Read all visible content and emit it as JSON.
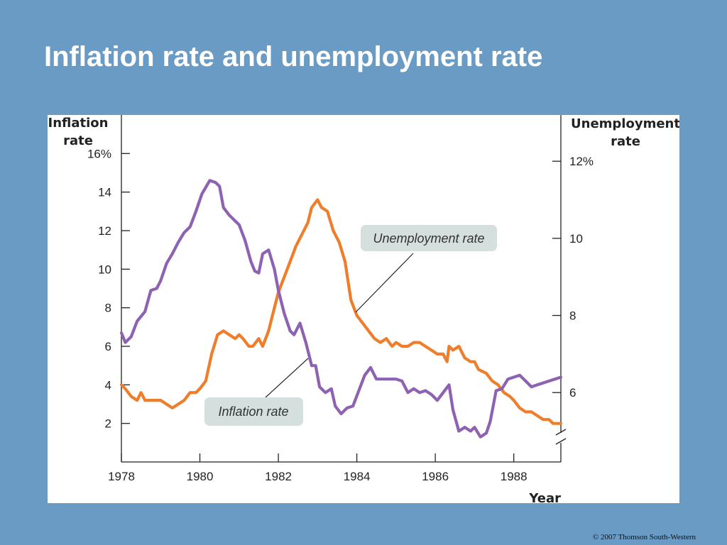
{
  "slide": {
    "title": "Inflation rate and unemployment rate",
    "copyright": "© 2007 Thomson South-Western"
  },
  "colors": {
    "background": "#6a9bc4",
    "inflation": "#8d62b2",
    "unemployment": "#ee7e2c",
    "callout_fill": "#d5e0de"
  },
  "chart_data": {
    "type": "line",
    "title": "Inflation rate and unemployment rate",
    "xlabel": "Year",
    "left_axis": {
      "label_line1": "Inflation",
      "label_line2": "rate",
      "range": [
        0,
        18
      ],
      "ticks": [
        {
          "value": 2,
          "label": "2"
        },
        {
          "value": 4,
          "label": "4"
        },
        {
          "value": 6,
          "label": "6"
        },
        {
          "value": 8,
          "label": "8"
        },
        {
          "value": 10,
          "label": "10"
        },
        {
          "value": 12,
          "label": "12"
        },
        {
          "value": 14,
          "label": "14"
        },
        {
          "value": 16,
          "label": "16%"
        }
      ]
    },
    "right_axis": {
      "label_line1": "Unemployment",
      "label_line2": "rate",
      "range": [
        4.2,
        13.2
      ],
      "axis_break": true,
      "ticks": [
        {
          "value": 6,
          "label": "6"
        },
        {
          "value": 8,
          "label": "8"
        },
        {
          "value": 10,
          "label": "10"
        },
        {
          "value": 12,
          "label": "12%"
        }
      ]
    },
    "x_range": [
      1978,
      1989.2
    ],
    "x_ticks": [
      {
        "value": 1978,
        "label": "1978"
      },
      {
        "value": 1980,
        "label": "1980"
      },
      {
        "value": 1982,
        "label": "1982"
      },
      {
        "value": 1984,
        "label": "1984"
      },
      {
        "value": 1986,
        "label": "1986"
      },
      {
        "value": 1988,
        "label": "1988"
      }
    ],
    "series": [
      {
        "name": "Inflation rate",
        "axis": "left",
        "points": [
          [
            1978.0,
            6.7
          ],
          [
            1978.1,
            6.2
          ],
          [
            1978.25,
            6.5
          ],
          [
            1978.4,
            7.3
          ],
          [
            1978.6,
            7.8
          ],
          [
            1978.75,
            8.9
          ],
          [
            1978.9,
            9.0
          ],
          [
            1979.0,
            9.4
          ],
          [
            1979.15,
            10.3
          ],
          [
            1979.3,
            10.8
          ],
          [
            1979.45,
            11.4
          ],
          [
            1979.6,
            11.9
          ],
          [
            1979.75,
            12.2
          ],
          [
            1979.9,
            13.0
          ],
          [
            1980.05,
            13.9
          ],
          [
            1980.25,
            14.6
          ],
          [
            1980.4,
            14.5
          ],
          [
            1980.5,
            14.3
          ],
          [
            1980.6,
            13.2
          ],
          [
            1980.75,
            12.8
          ],
          [
            1980.9,
            12.5
          ],
          [
            1981.0,
            12.3
          ],
          [
            1981.15,
            11.5
          ],
          [
            1981.3,
            10.4
          ],
          [
            1981.4,
            9.9
          ],
          [
            1981.5,
            9.8
          ],
          [
            1981.6,
            10.8
          ],
          [
            1981.75,
            11.0
          ],
          [
            1981.9,
            10.0
          ],
          [
            1982.0,
            8.9
          ],
          [
            1982.15,
            7.7
          ],
          [
            1982.3,
            6.8
          ],
          [
            1982.4,
            6.6
          ],
          [
            1982.55,
            7.2
          ],
          [
            1982.7,
            6.2
          ],
          [
            1982.85,
            5.0
          ],
          [
            1982.95,
            5.0
          ],
          [
            1983.05,
            3.9
          ],
          [
            1983.2,
            3.6
          ],
          [
            1983.35,
            3.8
          ],
          [
            1983.45,
            2.9
          ],
          [
            1983.6,
            2.5
          ],
          [
            1983.75,
            2.8
          ],
          [
            1983.9,
            2.9
          ],
          [
            1984.05,
            3.7
          ],
          [
            1984.2,
            4.5
          ],
          [
            1984.35,
            4.9
          ],
          [
            1984.5,
            4.3
          ],
          [
            1984.7,
            4.3
          ],
          [
            1984.85,
            4.3
          ],
          [
            1985.0,
            4.3
          ],
          [
            1985.15,
            4.2
          ],
          [
            1985.3,
            3.6
          ],
          [
            1985.45,
            3.8
          ],
          [
            1985.6,
            3.6
          ],
          [
            1985.75,
            3.7
          ],
          [
            1985.9,
            3.5
          ],
          [
            1986.05,
            3.2
          ],
          [
            1986.2,
            3.6
          ],
          [
            1986.35,
            4.0
          ],
          [
            1986.45,
            2.7
          ],
          [
            1986.6,
            1.6
          ],
          [
            1986.75,
            1.8
          ],
          [
            1986.9,
            1.6
          ],
          [
            1987.0,
            1.8
          ],
          [
            1987.15,
            1.3
          ],
          [
            1987.3,
            1.5
          ],
          [
            1987.4,
            2.1
          ],
          [
            1987.55,
            3.7
          ],
          [
            1987.7,
            3.8
          ],
          [
            1987.85,
            4.3
          ],
          [
            1988.0,
            4.4
          ],
          [
            1988.15,
            4.5
          ],
          [
            1988.3,
            4.2
          ],
          [
            1988.45,
            3.9
          ],
          [
            1988.6,
            4.0
          ],
          [
            1988.75,
            4.1
          ],
          [
            1988.9,
            4.2
          ],
          [
            1989.05,
            4.3
          ],
          [
            1989.2,
            4.4
          ]
        ]
      },
      {
        "name": "Unemployment rate",
        "axis": "right",
        "points": [
          [
            1978.0,
            6.2
          ],
          [
            1978.1,
            6.1
          ],
          [
            1978.25,
            5.9
          ],
          [
            1978.4,
            5.8
          ],
          [
            1978.5,
            6.0
          ],
          [
            1978.6,
            5.8
          ],
          [
            1978.75,
            5.8
          ],
          [
            1978.9,
            5.8
          ],
          [
            1979.0,
            5.8
          ],
          [
            1979.15,
            5.7
          ],
          [
            1979.3,
            5.6
          ],
          [
            1979.45,
            5.7
          ],
          [
            1979.6,
            5.8
          ],
          [
            1979.75,
            6.0
          ],
          [
            1979.9,
            6.0
          ],
          [
            1980.0,
            6.1
          ],
          [
            1980.15,
            6.3
          ],
          [
            1980.3,
            7.0
          ],
          [
            1980.45,
            7.5
          ],
          [
            1980.6,
            7.6
          ],
          [
            1980.75,
            7.5
          ],
          [
            1980.9,
            7.4
          ],
          [
            1981.0,
            7.5
          ],
          [
            1981.1,
            7.4
          ],
          [
            1981.25,
            7.2
          ],
          [
            1981.35,
            7.2
          ],
          [
            1981.5,
            7.4
          ],
          [
            1981.6,
            7.2
          ],
          [
            1981.75,
            7.6
          ],
          [
            1981.9,
            8.2
          ],
          [
            1982.0,
            8.6
          ],
          [
            1982.15,
            9.0
          ],
          [
            1982.3,
            9.4
          ],
          [
            1982.45,
            9.8
          ],
          [
            1982.6,
            10.1
          ],
          [
            1982.75,
            10.4
          ],
          [
            1982.85,
            10.8
          ],
          [
            1983.0,
            11.0
          ],
          [
            1983.1,
            10.8
          ],
          [
            1983.25,
            10.7
          ],
          [
            1983.4,
            10.2
          ],
          [
            1983.55,
            9.9
          ],
          [
            1983.7,
            9.4
          ],
          [
            1983.85,
            8.4
          ],
          [
            1984.0,
            8.0
          ],
          [
            1984.15,
            7.8
          ],
          [
            1984.3,
            7.6
          ],
          [
            1984.45,
            7.4
          ],
          [
            1984.6,
            7.3
          ],
          [
            1984.75,
            7.4
          ],
          [
            1984.9,
            7.2
          ],
          [
            1985.0,
            7.3
          ],
          [
            1985.15,
            7.2
          ],
          [
            1985.3,
            7.2
          ],
          [
            1985.45,
            7.3
          ],
          [
            1985.6,
            7.3
          ],
          [
            1985.75,
            7.2
          ],
          [
            1985.9,
            7.1
          ],
          [
            1986.05,
            7.0
          ],
          [
            1986.2,
            7.0
          ],
          [
            1986.3,
            6.8
          ],
          [
            1986.35,
            7.2
          ],
          [
            1986.45,
            7.1
          ],
          [
            1986.6,
            7.2
          ],
          [
            1986.75,
            6.9
          ],
          [
            1986.9,
            6.8
          ],
          [
            1987.0,
            6.8
          ],
          [
            1987.1,
            6.6
          ],
          [
            1987.3,
            6.5
          ],
          [
            1987.45,
            6.3
          ],
          [
            1987.6,
            6.2
          ],
          [
            1987.75,
            6.0
          ],
          [
            1987.9,
            5.9
          ],
          [
            1988.0,
            5.8
          ],
          [
            1988.15,
            5.6
          ],
          [
            1988.3,
            5.5
          ],
          [
            1988.45,
            5.5
          ],
          [
            1988.6,
            5.4
          ],
          [
            1988.75,
            5.3
          ],
          [
            1988.9,
            5.3
          ],
          [
            1989.0,
            5.2
          ],
          [
            1989.1,
            5.2
          ],
          [
            1989.2,
            5.2
          ]
        ]
      }
    ],
    "annotations": [
      {
        "series": "Unemployment rate",
        "text": "Unemployment rate"
      },
      {
        "series": "Inflation rate",
        "text": "Inflation rate"
      }
    ]
  }
}
